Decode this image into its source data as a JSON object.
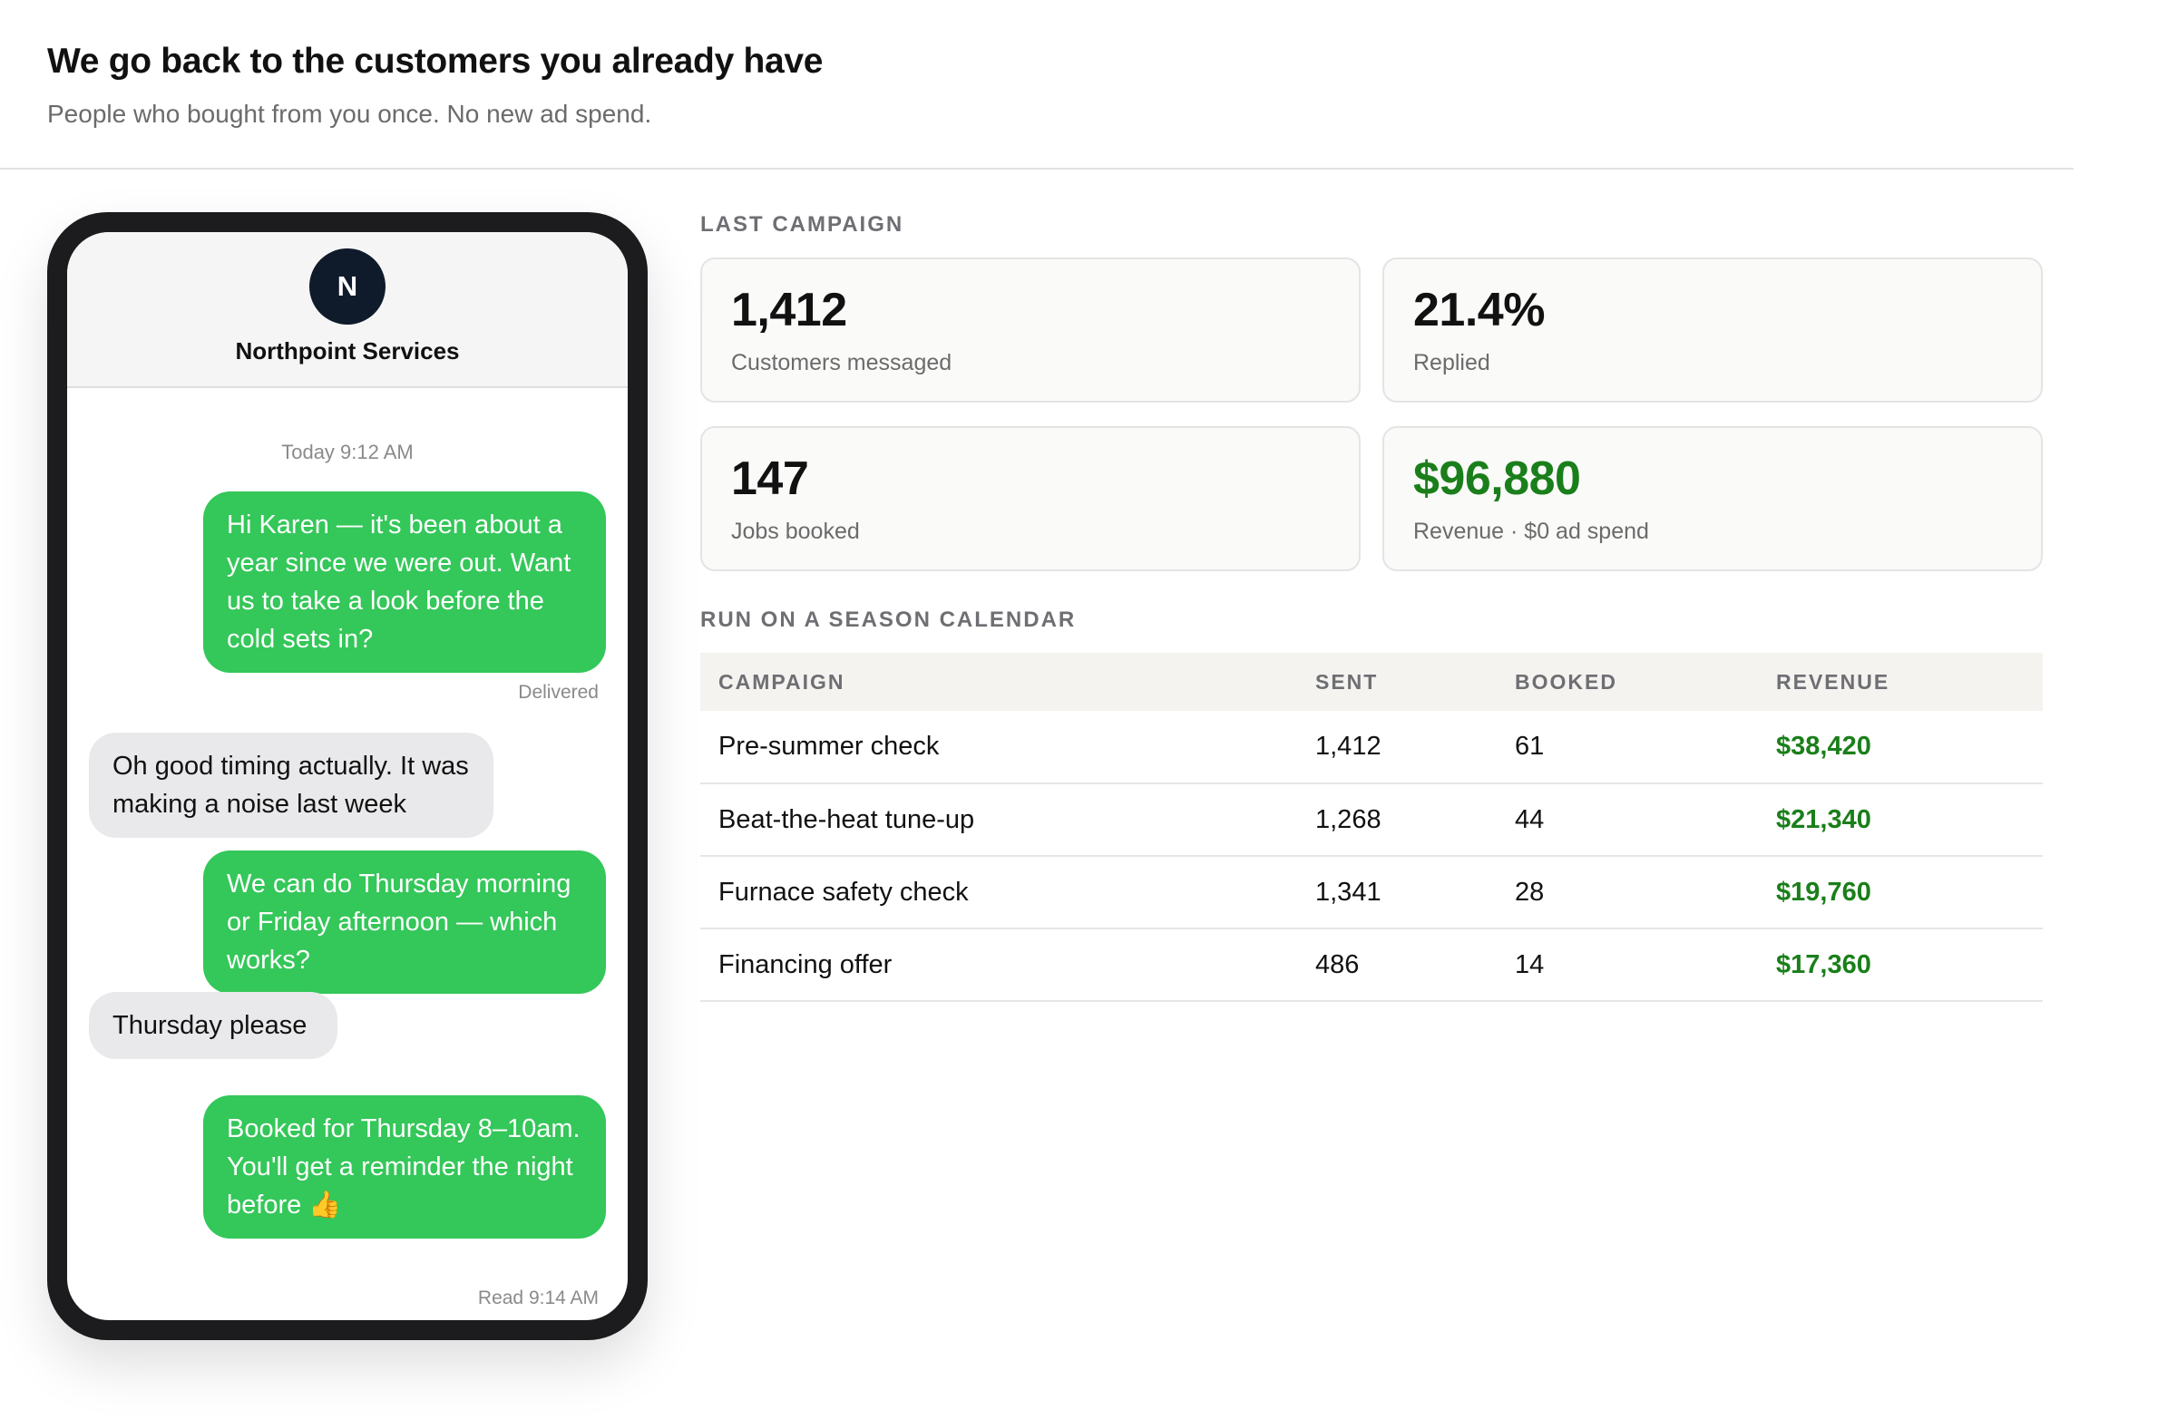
{
  "header": {
    "title": "We go back to the customers you already have",
    "subtitle": "People who bought from you once. No new ad spend."
  },
  "phone": {
    "avatar_initial": "N",
    "contact_name": "Northpoint Services",
    "timestamp": "Today 9:12 AM",
    "messages": [
      {
        "direction": "outgoing",
        "text": "Hi Karen — it's been about a year since we were out. Want us to take a look before the cold sets in?",
        "status": "Delivered"
      },
      {
        "direction": "incoming",
        "text": "Oh good timing actually. It was making a noise last week"
      },
      {
        "direction": "outgoing",
        "text": "We can do Thursday morning or Friday afternoon — which works?"
      },
      {
        "direction": "incoming",
        "text": "Thursday please"
      },
      {
        "direction": "outgoing",
        "text": "Booked for Thursday 8–10am. You'll get a reminder the night before 👍",
        "status": "Read 9:14 AM"
      }
    ]
  },
  "last_campaign": {
    "label": "LAST CAMPAIGN",
    "stats": [
      {
        "value": "1,412",
        "label": "Customers messaged"
      },
      {
        "value": "21.4%",
        "label": "Replied"
      },
      {
        "value": "147",
        "label": "Jobs booked"
      },
      {
        "value": "$96,880",
        "label": "Revenue · $0 ad spend"
      }
    ]
  },
  "season_calendar": {
    "label": "RUN ON A SEASON CALENDAR",
    "columns": [
      "CAMPAIGN",
      "SENT",
      "BOOKED",
      "REVENUE"
    ],
    "rows": [
      {
        "campaign": "Pre-summer check",
        "sent": "1,412",
        "booked": "61",
        "revenue": "$38,420"
      },
      {
        "campaign": "Beat-the-heat tune-up",
        "sent": "1,268",
        "booked": "44",
        "revenue": "$21,340"
      },
      {
        "campaign": "Furnace safety check",
        "sent": "1,341",
        "booked": "28",
        "revenue": "$19,760"
      },
      {
        "campaign": "Financing offer",
        "sent": "486",
        "booked": "14",
        "revenue": "$17,360"
      }
    ]
  },
  "colors": {
    "outgoing_bubble": "#34c759",
    "incoming_bubble": "#e9e9eb",
    "revenue_green": "#1a7f1a",
    "avatar_bg": "#0f1b2b"
  }
}
